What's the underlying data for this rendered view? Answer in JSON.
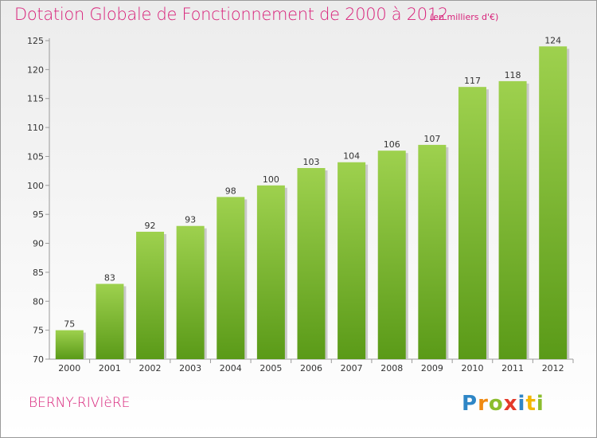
{
  "header": {
    "title": "Dotation Globale de Fonctionnement de 2000 à 2012",
    "unit": "(en milliers d'€)"
  },
  "footer": {
    "commune": "BERNY-RIVIèRE",
    "logo_text": "Proxiti"
  },
  "colors": {
    "accent": "#d8227a",
    "bar_top": "#9ed14e",
    "bar_bottom": "#5a9a18"
  },
  "chart_data": {
    "type": "bar",
    "title": "Dotation Globale de Fonctionnement de 2000 à 2012",
    "subtitle": "(en milliers d'€)",
    "xlabel": "",
    "ylabel": "",
    "categories": [
      "2000",
      "2001",
      "2002",
      "2003",
      "2004",
      "2005",
      "2006",
      "2007",
      "2008",
      "2009",
      "2010",
      "2011",
      "2012"
    ],
    "values": [
      75,
      83,
      92,
      93,
      98,
      100,
      103,
      104,
      106,
      107,
      117,
      118,
      124
    ],
    "ylim": [
      70,
      125
    ],
    "yticks": [
      70,
      75,
      80,
      85,
      90,
      95,
      100,
      105,
      110,
      115,
      120,
      125
    ],
    "grid": false,
    "legend": "none"
  }
}
